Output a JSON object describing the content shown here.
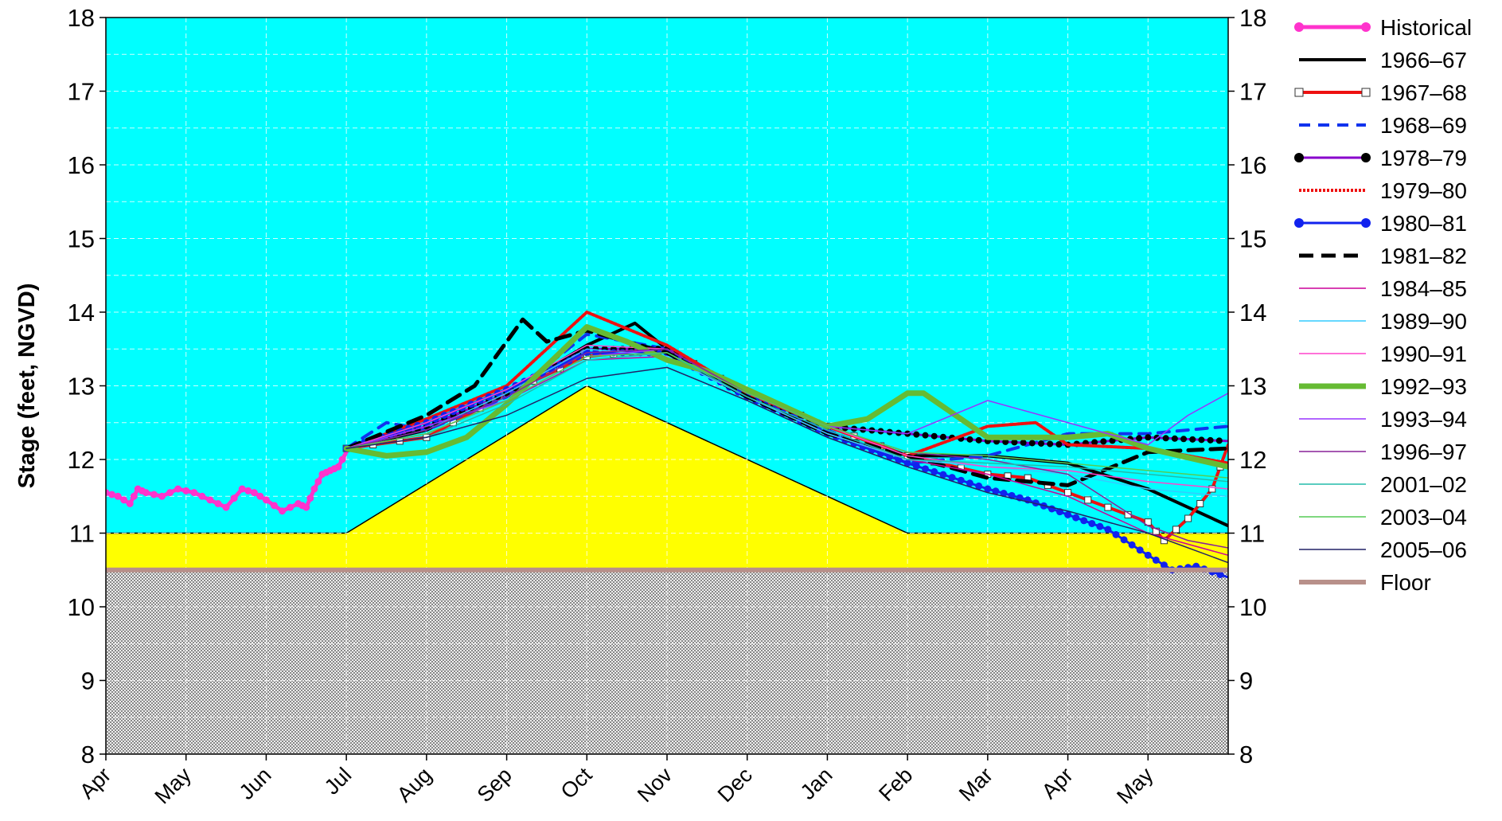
{
  "chart_data": {
    "type": "line",
    "title": "",
    "xlabel": "",
    "ylabel": "Stage (feet, NGVD)",
    "ylim": [
      8,
      18
    ],
    "yticks": [
      8,
      9,
      10,
      11,
      12,
      13,
      14,
      15,
      16,
      17,
      18
    ],
    "xlim": [
      0,
      14
    ],
    "xtick_labels": [
      "Apr",
      "May",
      "Jun",
      "Jul",
      "Aug",
      "Sep",
      "Oct",
      "Nov",
      "Dec",
      "Jan",
      "Feb",
      "Mar",
      "Apr",
      "May"
    ],
    "grid": true,
    "legend_placement": "right",
    "colors": {
      "background": "#00FFFF",
      "regulation_zone": "#FFFF00",
      "floor": "#B8908A",
      "below_floor": "#C8C8C8"
    },
    "regulation_schedule": {
      "x": [
        0,
        3,
        6,
        10,
        14
      ],
      "y": [
        11,
        11,
        13,
        11,
        11
      ]
    },
    "series": [
      {
        "name": "Historical",
        "color": "#FF33CC",
        "width": 5,
        "marker": "dot",
        "x": [
          0,
          0.15,
          0.3,
          0.4,
          0.5,
          0.7,
          0.9,
          1.1,
          1.3,
          1.5,
          1.7,
          1.85,
          2.0,
          2.2,
          2.4,
          2.5,
          2.6,
          2.7,
          2.8,
          2.9,
          3.0
        ],
        "y": [
          11.55,
          11.5,
          11.4,
          11.6,
          11.55,
          11.5,
          11.6,
          11.55,
          11.45,
          11.35,
          11.6,
          11.55,
          11.45,
          11.3,
          11.4,
          11.35,
          11.6,
          11.8,
          11.85,
          11.9,
          12.1
        ]
      },
      {
        "name": "1966–67",
        "color": "#000000",
        "width": 4,
        "x": [
          3,
          4,
          5,
          6,
          6.6,
          7,
          8,
          9,
          10,
          11,
          12,
          13,
          14
        ],
        "y": [
          12.15,
          12.4,
          12.9,
          13.55,
          13.85,
          13.5,
          12.9,
          12.45,
          12.05,
          12.05,
          11.95,
          11.6,
          11.1
        ]
      },
      {
        "name": "1967–68",
        "color": "#EE1111",
        "width": 4,
        "marker": "open-square",
        "x": [
          3,
          4,
          5,
          6,
          7,
          8,
          9,
          10,
          11,
          11.5,
          12,
          12.5,
          13,
          13.2,
          13.5,
          13.8,
          14
        ],
        "y": [
          12.15,
          12.3,
          12.9,
          13.4,
          13.5,
          12.9,
          12.45,
          12.05,
          11.8,
          11.75,
          11.55,
          11.35,
          11.15,
          10.9,
          11.2,
          11.6,
          12.2
        ]
      },
      {
        "name": "1968–69",
        "color": "#1133EE",
        "width": 4,
        "dash": "14,10",
        "x": [
          3,
          3.5,
          4,
          5,
          6,
          7,
          8,
          9,
          10,
          11,
          12,
          13,
          14
        ],
        "y": [
          12.15,
          12.5,
          12.4,
          12.85,
          13.7,
          13.5,
          12.9,
          12.4,
          11.95,
          12.05,
          12.35,
          12.35,
          12.45
        ]
      },
      {
        "name": "1978–79",
        "color": "#8800CC",
        "width": 3,
        "marker": "black-dot",
        "x": [
          3,
          4,
          5,
          6,
          7,
          8,
          9,
          10,
          11,
          12,
          13,
          14
        ],
        "y": [
          12.15,
          12.45,
          12.9,
          13.5,
          13.5,
          12.9,
          12.45,
          12.35,
          12.25,
          12.2,
          12.3,
          12.25
        ]
      },
      {
        "name": "1979–80",
        "color": "#EE1111",
        "width": 4,
        "dash": "3,2",
        "x": [
          3,
          4,
          5,
          6,
          7,
          8,
          9,
          10,
          11,
          11.6,
          12,
          13,
          14
        ],
        "y": [
          12.15,
          12.55,
          13.0,
          14.0,
          13.55,
          12.9,
          12.45,
          12.05,
          12.45,
          12.5,
          12.2,
          12.15,
          11.95
        ]
      },
      {
        "name": "1980–81",
        "color": "#1122EE",
        "width": 3,
        "marker": "dot",
        "x": [
          3,
          4,
          5,
          6,
          7,
          8,
          9,
          10,
          11,
          11.5,
          12,
          12.5,
          13,
          13.3,
          13.6,
          14
        ],
        "y": [
          12.15,
          12.5,
          12.95,
          13.45,
          13.45,
          12.85,
          12.35,
          11.95,
          11.6,
          11.45,
          11.25,
          11.05,
          10.7,
          10.5,
          10.55,
          10.4
        ]
      },
      {
        "name": "1981–82",
        "color": "#000000",
        "width": 5,
        "dash": "18,10",
        "x": [
          3,
          4,
          4.6,
          5,
          5.2,
          5.5,
          6,
          7,
          8,
          9,
          10,
          11,
          12,
          13,
          14
        ],
        "y": [
          12.15,
          12.6,
          13.0,
          13.6,
          13.9,
          13.6,
          13.75,
          13.45,
          12.85,
          12.35,
          12.05,
          11.75,
          11.65,
          12.1,
          12.15
        ]
      },
      {
        "name": "1984–85",
        "color": "#CC0099",
        "width": 1.5,
        "x": [
          3,
          4,
          5,
          6,
          7,
          8,
          9,
          10,
          11,
          12,
          13,
          14
        ],
        "y": [
          12.15,
          12.35,
          12.8,
          13.35,
          13.4,
          12.85,
          12.35,
          12.0,
          11.8,
          11.5,
          11.0,
          10.7
        ]
      },
      {
        "name": "1989–90",
        "color": "#33CCFF",
        "width": 1.5,
        "x": [
          3,
          4,
          5,
          6,
          7,
          8,
          9,
          10,
          11,
          12,
          13,
          14
        ],
        "y": [
          12.15,
          12.4,
          12.9,
          13.5,
          13.4,
          12.85,
          12.35,
          12.0,
          11.9,
          11.8,
          11.6,
          11.5
        ]
      },
      {
        "name": "1990–91",
        "color": "#FF44CC",
        "width": 1.5,
        "x": [
          3,
          4,
          5,
          6,
          7,
          8,
          9,
          10,
          11,
          12,
          13,
          14
        ],
        "y": [
          12.15,
          12.5,
          12.95,
          13.55,
          13.5,
          12.9,
          12.45,
          12.05,
          11.9,
          11.85,
          11.7,
          11.6
        ]
      },
      {
        "name": "1992–93",
        "color": "#66BB33",
        "width": 7,
        "x": [
          3,
          3.5,
          4,
          4.5,
          5,
          6,
          6.5,
          7,
          7.5,
          8,
          8.5,
          9,
          9.5,
          10,
          10.2,
          11,
          12,
          12.5,
          13,
          14
        ],
        "y": [
          12.15,
          12.05,
          12.1,
          12.3,
          12.75,
          13.8,
          13.6,
          13.35,
          13.2,
          12.95,
          12.7,
          12.45,
          12.55,
          12.9,
          12.9,
          12.3,
          12.3,
          12.35,
          12.15,
          11.9
        ]
      },
      {
        "name": "1993–94",
        "color": "#9933FF",
        "width": 1.5,
        "x": [
          3,
          4,
          5,
          6,
          7,
          8,
          9,
          10,
          11,
          12,
          13,
          13.5,
          14
        ],
        "y": [
          12.15,
          12.45,
          12.8,
          13.4,
          13.5,
          12.9,
          12.45,
          12.35,
          12.8,
          12.5,
          12.2,
          12.6,
          12.9
        ]
      },
      {
        "name": "1996–97",
        "color": "#882299",
        "width": 1.5,
        "x": [
          3,
          4,
          5,
          6,
          7,
          8,
          9,
          10,
          11,
          12,
          13,
          13.5,
          14
        ],
        "y": [
          12.15,
          12.4,
          12.85,
          13.45,
          13.5,
          12.9,
          12.45,
          12.1,
          12.0,
          11.8,
          11.1,
          10.9,
          10.8
        ]
      },
      {
        "name": "2001–02",
        "color": "#22BBAA",
        "width": 1.5,
        "x": [
          3,
          4,
          5,
          6,
          7,
          8,
          9,
          10,
          11,
          12,
          13,
          14
        ],
        "y": [
          12.15,
          12.3,
          12.75,
          13.35,
          13.45,
          12.85,
          12.4,
          12.0,
          11.95,
          11.9,
          11.8,
          11.7
        ]
      },
      {
        "name": "2003–04",
        "color": "#55CC55",
        "width": 1.5,
        "x": [
          3,
          4,
          5,
          6,
          7,
          8,
          9,
          10,
          11,
          12,
          13,
          14
        ],
        "y": [
          12.15,
          12.35,
          12.8,
          13.4,
          13.45,
          12.9,
          12.45,
          12.1,
          12.05,
          11.95,
          11.85,
          11.75
        ]
      },
      {
        "name": "2005–06",
        "color": "#222266",
        "width": 1.5,
        "x": [
          3,
          4,
          5,
          6,
          7,
          8,
          9,
          10,
          11,
          12,
          13,
          14
        ],
        "y": [
          12.15,
          12.3,
          12.6,
          13.1,
          13.25,
          12.8,
          12.3,
          11.9,
          11.55,
          11.3,
          11.0,
          10.6
        ]
      },
      {
        "name": "Floor",
        "color": "#B8908A",
        "width": 6,
        "x": [
          0,
          14
        ],
        "y": [
          10.5,
          10.5
        ]
      }
    ]
  }
}
